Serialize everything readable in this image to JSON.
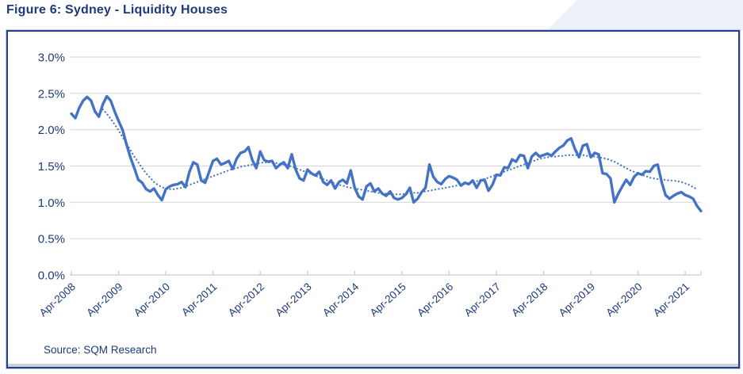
{
  "page": {
    "title": "Figure 6: Sydney - Liquidity Houses",
    "source": "Source: SQM Research"
  },
  "colors": {
    "navy_text": "#1e3a7c",
    "line_blue": "#4472C4",
    "trend_blue": "#4472C4",
    "gridline": "#d9d9d9",
    "axis_line": "#c9c9c9",
    "frame_border": "#24418c",
    "corner_fill": "#ecf1f9"
  },
  "chart_data": {
    "type": "line",
    "title": "Figure 6: Sydney - Liquidity Houses",
    "source": "Source: SQM Research",
    "x_start_month": "Apr-2008",
    "x_interval": "monthly",
    "x_tick_labels": [
      "Apr-2008",
      "Apr-2009",
      "Apr-2010",
      "Apr-2011",
      "Apr-2012",
      "Apr-2013",
      "Apr-2014",
      "Apr-2015",
      "Apr-2016",
      "Apr-2017",
      "Apr-2018",
      "Apr-2019",
      "Apr-2020",
      "Apr-2021"
    ],
    "ylim": [
      0.0,
      3.0
    ],
    "ytick_labels": [
      "0.0%",
      "0.5%",
      "1.0%",
      "1.5%",
      "2.0%",
      "2.5%",
      "3.0%"
    ],
    "grid": "horizontal",
    "legend": "none",
    "series": [
      {
        "name": "Liquidity - Houses (%)",
        "style": "solid",
        "values": [
          2.22,
          2.16,
          2.3,
          2.4,
          2.45,
          2.4,
          2.25,
          2.18,
          2.35,
          2.46,
          2.4,
          2.25,
          2.12,
          2.0,
          1.8,
          1.62,
          1.47,
          1.31,
          1.27,
          1.18,
          1.15,
          1.19,
          1.1,
          1.03,
          1.18,
          1.22,
          1.24,
          1.25,
          1.28,
          1.21,
          1.42,
          1.55,
          1.52,
          1.3,
          1.27,
          1.42,
          1.57,
          1.6,
          1.52,
          1.54,
          1.57,
          1.46,
          1.6,
          1.68,
          1.7,
          1.76,
          1.58,
          1.47,
          1.7,
          1.58,
          1.56,
          1.57,
          1.47,
          1.52,
          1.55,
          1.47,
          1.66,
          1.45,
          1.33,
          1.3,
          1.45,
          1.4,
          1.37,
          1.42,
          1.28,
          1.24,
          1.3,
          1.19,
          1.28,
          1.31,
          1.26,
          1.44,
          1.2,
          1.08,
          1.04,
          1.22,
          1.26,
          1.15,
          1.19,
          1.12,
          1.09,
          1.15,
          1.06,
          1.04,
          1.06,
          1.11,
          1.2,
          1.0,
          1.05,
          1.14,
          1.2,
          1.52,
          1.35,
          1.28,
          1.25,
          1.32,
          1.36,
          1.34,
          1.31,
          1.23,
          1.27,
          1.25,
          1.3,
          1.2,
          1.3,
          1.31,
          1.16,
          1.24,
          1.38,
          1.37,
          1.48,
          1.47,
          1.59,
          1.56,
          1.65,
          1.64,
          1.47,
          1.63,
          1.68,
          1.63,
          1.65,
          1.67,
          1.64,
          1.7,
          1.75,
          1.78,
          1.85,
          1.88,
          1.73,
          1.62,
          1.78,
          1.8,
          1.62,
          1.68,
          1.66,
          1.4,
          1.39,
          1.33,
          1.0,
          1.12,
          1.22,
          1.31,
          1.24,
          1.35,
          1.4,
          1.38,
          1.43,
          1.42,
          1.5,
          1.52,
          1.28,
          1.1,
          1.05,
          1.09,
          1.12,
          1.14,
          1.1,
          1.08,
          1.05,
          0.95,
          0.88
        ]
      },
      {
        "name": "Trend (dotted)",
        "style": "dotted",
        "values": [
          null,
          null,
          null,
          null,
          null,
          null,
          null,
          null,
          2.28,
          2.22,
          2.15,
          2.07,
          1.99,
          1.9,
          1.81,
          1.72,
          1.63,
          1.55,
          1.47,
          1.4,
          1.34,
          1.28,
          1.24,
          1.21,
          1.19,
          1.18,
          1.18,
          1.19,
          1.2,
          1.22,
          1.24,
          1.26,
          1.28,
          1.3,
          1.32,
          1.34,
          1.36,
          1.38,
          1.4,
          1.42,
          1.44,
          1.46,
          1.47,
          1.49,
          1.5,
          1.51,
          1.52,
          1.53,
          1.54,
          1.55,
          1.55,
          1.55,
          1.54,
          1.53,
          1.52,
          1.51,
          1.49,
          1.47,
          1.45,
          1.43,
          1.41,
          1.39,
          1.37,
          1.34,
          1.32,
          1.3,
          1.28,
          1.26,
          1.24,
          1.23,
          1.21,
          1.2,
          1.19,
          1.18,
          1.17,
          1.16,
          1.15,
          1.14,
          1.13,
          1.12,
          1.12,
          1.11,
          1.11,
          1.11,
          1.11,
          1.12,
          1.12,
          1.13,
          1.13,
          1.14,
          1.15,
          1.16,
          1.17,
          1.18,
          1.19,
          1.2,
          1.21,
          1.22,
          1.23,
          1.24,
          1.25,
          1.26,
          1.28,
          1.29,
          1.31,
          1.32,
          1.34,
          1.36,
          1.38,
          1.4,
          1.42,
          1.44,
          1.46,
          1.48,
          1.5,
          1.52,
          1.54,
          1.56,
          1.58,
          1.6,
          1.61,
          1.62,
          1.63,
          1.63,
          1.64,
          1.64,
          1.65,
          1.65,
          1.65,
          1.65,
          1.65,
          1.64,
          1.64,
          1.63,
          1.62,
          1.61,
          1.6,
          1.58,
          1.56,
          1.53,
          1.5,
          1.47,
          1.44,
          1.42,
          1.4,
          1.38,
          1.36,
          1.34,
          1.33,
          1.32,
          1.31,
          1.31,
          1.3,
          1.3,
          1.29,
          1.28,
          1.26,
          1.24,
          1.21,
          1.18,
          null
        ]
      }
    ]
  }
}
